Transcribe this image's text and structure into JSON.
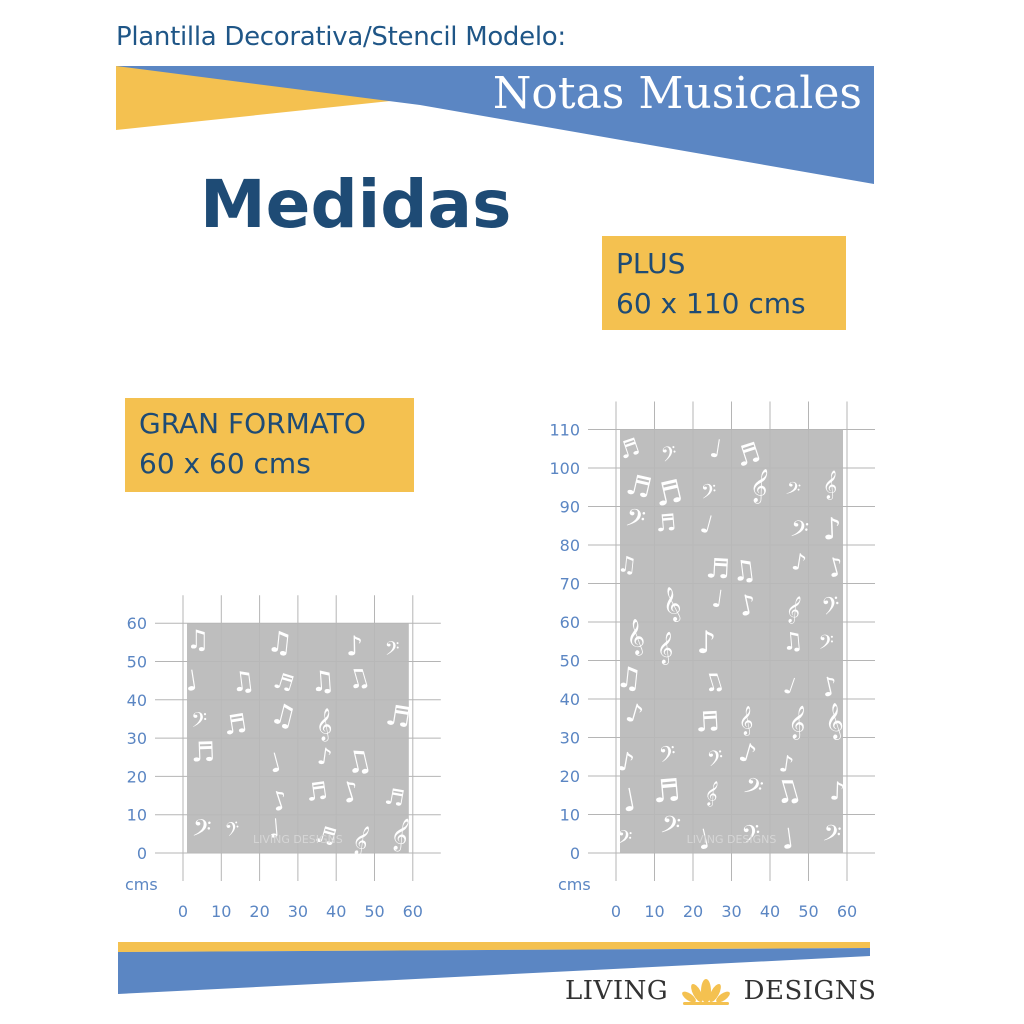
{
  "header": {
    "subtitle": "Plantilla Decorativa/Stencil Modelo:",
    "banner_title": "Notas Musicales"
  },
  "heading": "Medidas",
  "boxes": {
    "plus": {
      "line1": "PLUS",
      "line2": "60 x 110 cms"
    },
    "gran": {
      "line1": "GRAN FORMATO",
      "line2": "60 x 60 cms"
    }
  },
  "charts": {
    "small": {
      "unit": "cms",
      "x_ticks": [
        "0",
        "10",
        "20",
        "30",
        "40",
        "50",
        "60"
      ],
      "y_ticks": [
        "0",
        "10",
        "20",
        "30",
        "40",
        "50",
        "60"
      ],
      "width_cm": 60,
      "height_cm": 60,
      "watermark": "LIVING DESIGNS"
    },
    "large": {
      "unit": "cms",
      "x_ticks": [
        "0",
        "10",
        "20",
        "30",
        "40",
        "50",
        "60"
      ],
      "y_ticks": [
        "0",
        "10",
        "20",
        "30",
        "40",
        "50",
        "60",
        "70",
        "80",
        "90",
        "100",
        "110"
      ],
      "width_cm": 60,
      "height_cm": 110,
      "watermark": "LIVING DESIGNS"
    }
  },
  "footer": {
    "brand_left": "LIVING",
    "brand_right": "DESIGNS"
  },
  "colors": {
    "blue": "#5b86c3",
    "yellow": "#f4c150",
    "navy": "#1e4b75",
    "stencil_gray": "#b9b9b9",
    "axis_blue": "#5b86c3"
  },
  "icons": [
    "music-note-icon",
    "treble-clef-icon",
    "bass-clef-icon",
    "lotus-icon"
  ]
}
